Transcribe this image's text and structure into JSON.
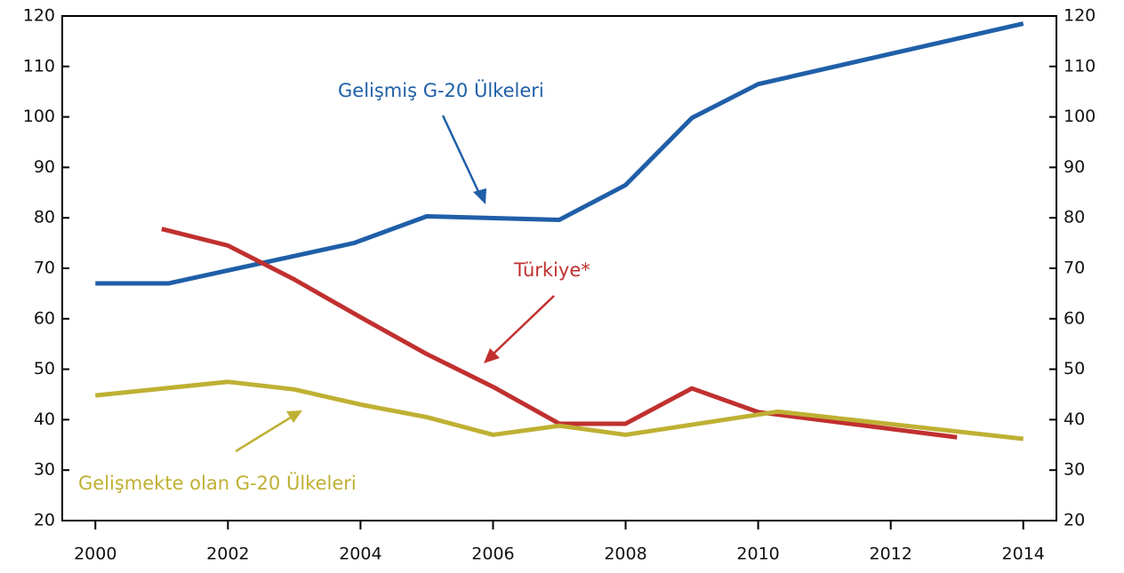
{
  "chart_data": {
    "type": "line",
    "xlim": [
      1999.5,
      2014.5
    ],
    "xticks": [
      2000,
      2002,
      2004,
      2006,
      2008,
      2010,
      2012,
      2014
    ],
    "ylim": [
      20,
      120
    ],
    "yticks": [
      20,
      30,
      40,
      50,
      60,
      70,
      80,
      90,
      100,
      110,
      120
    ],
    "y2lim": [
      20,
      120
    ],
    "y2ticks": [
      20,
      30,
      40,
      50,
      60,
      70,
      80,
      90,
      100,
      110,
      120
    ],
    "series": [
      {
        "name": "Gelişmiş G-20 Ülkeleri",
        "color": "#1f5fa8",
        "x": [
          2000,
          2001.1,
          2003.9,
          2005,
          2007,
          2008,
          2009,
          2010,
          2014
        ],
        "values": [
          67,
          67,
          75,
          80.3,
          79.6,
          86.5,
          99.8,
          106.5,
          118.5
        ]
      },
      {
        "name": "Türkiye*",
        "color": "#c0302f",
        "x": [
          2001,
          2002,
          2003,
          2004,
          2005,
          2006,
          2007,
          2008,
          2009,
          2010,
          2013
        ],
        "values": [
          77.8,
          74.5,
          67.8,
          60.3,
          53,
          46.5,
          39.2,
          39.2,
          46.2,
          41.5,
          36.5
        ]
      },
      {
        "name": "Gelişmekte olan G-20 Ülkeleri",
        "color": "#bfb033",
        "x": [
          2000,
          2002,
          2003,
          2004,
          2005,
          2006,
          2007,
          2008,
          2010.3,
          2014
        ],
        "values": [
          44.8,
          47.5,
          46,
          43,
          40.5,
          37,
          38.8,
          37,
          41.6,
          36.2
        ]
      }
    ]
  }
}
